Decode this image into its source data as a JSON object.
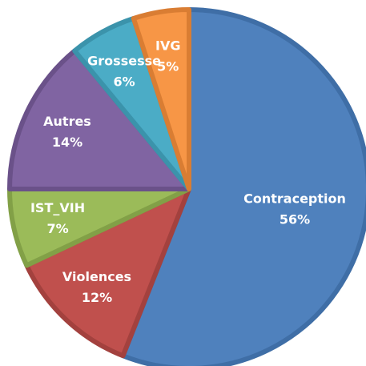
{
  "chart_data": {
    "type": "pie",
    "categories": [
      "Contraception",
      "Violences",
      "IST_VIH",
      "Autres",
      "Grossesse",
      "IVG"
    ],
    "values": [
      56,
      12,
      7,
      14,
      6,
      5
    ],
    "value_labels": [
      "56%",
      "12%",
      "7%",
      "14%",
      "6%",
      "5%"
    ],
    "colors": [
      "#4f81bd",
      "#c0504d",
      "#9bbb59",
      "#8064a2",
      "#4bacc6",
      "#f79646"
    ],
    "stroke_colors": [
      "#3f6ea6",
      "#a3413e",
      "#82a047",
      "#6a5189",
      "#3b93ab",
      "#d97d33"
    ]
  }
}
